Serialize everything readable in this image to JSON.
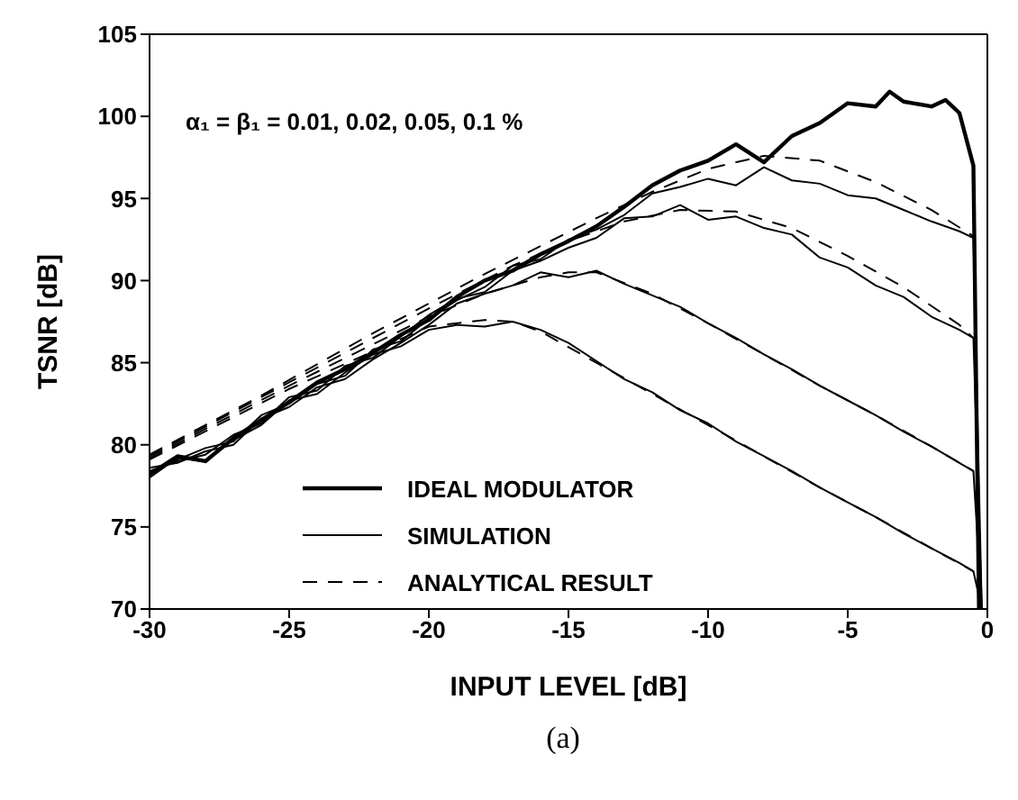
{
  "chart_data": {
    "type": "line",
    "xlabel": "INPUT LEVEL [dB]",
    "ylabel": "TSNR [dB]",
    "xlim": [
      -30,
      0
    ],
    "xticks": [
      -30,
      -25,
      -20,
      -15,
      -10,
      -5,
      0
    ],
    "ylim": [
      70,
      105
    ],
    "yticks": [
      70,
      75,
      80,
      85,
      90,
      95,
      100,
      105
    ],
    "grid": false,
    "legend": "bottom left",
    "marker": "none",
    "annotations": [
      "α₁ = β₁ = 0.01, 0.02, 0.05, 0.1 %",
      "(a)"
    ],
    "series": [
      {
        "name": "IDEAL MODULATOR",
        "color": "#000000",
        "line_style": "solid",
        "x": [
          -30,
          -29,
          -28,
          -27,
          -26,
          -25,
          -24,
          -23,
          -22,
          -21,
          -20,
          -19,
          -18,
          -17,
          -16,
          -15,
          -14,
          -13,
          -12,
          -11,
          -10,
          -9,
          -8,
          -7,
          -6,
          -5,
          -4,
          -3.5,
          -3,
          -2,
          -1.5,
          -1,
          -0.5,
          -0.3
        ],
        "values": [
          78.2,
          79.3,
          79.0,
          80.4,
          81.5,
          82.6,
          83.8,
          84.6,
          85.6,
          86.7,
          87.6,
          89.0,
          90.0,
          90.6,
          91.6,
          92.4,
          93.3,
          94.5,
          95.8,
          96.7,
          97.3,
          98.3,
          97.2,
          98.8,
          99.6,
          100.8,
          100.6,
          101.5,
          100.9,
          100.6,
          101.0,
          100.2,
          97.0,
          70.0
        ]
      },
      {
        "name": "SIMULATION",
        "color": "#000000",
        "line_style": "solid",
        "x": [
          -30,
          -29,
          -28,
          -27,
          -26,
          -25,
          -24,
          -23,
          -22,
          -21,
          -20,
          -19,
          -18,
          -17,
          -16,
          -15,
          -14,
          -13,
          -12,
          -11,
          -10,
          -9,
          -8,
          -7,
          -6,
          -5,
          -4,
          -3,
          -2,
          -1,
          -0.5,
          -0.2
        ],
        "values": [
          78.3,
          79.1,
          79.8,
          80.2,
          81.8,
          82.5,
          83.7,
          84.2,
          85.8,
          86.3,
          87.7,
          88.8,
          89.6,
          90.9,
          91.3,
          92.5,
          93.1,
          94.0,
          95.3,
          95.7,
          96.2,
          95.8,
          96.9,
          96.1,
          95.9,
          95.2,
          95.0,
          94.3,
          93.6,
          93.0,
          92.6,
          70.0
        ]
      },
      {
        "color": "#000000",
        "line_style": "solid",
        "x": [
          -30,
          -29,
          -28,
          -27,
          -26,
          -25,
          -24,
          -23,
          -22,
          -21,
          -20,
          -19,
          -18,
          -17,
          -16,
          -15,
          -14,
          -13,
          -12,
          -11,
          -10,
          -9,
          -8,
          -7,
          -6,
          -5,
          -4,
          -3,
          -2,
          -1,
          -0.5,
          -0.2
        ],
        "values": [
          78.4,
          79.0,
          79.4,
          80.6,
          81.3,
          82.9,
          83.3,
          84.8,
          85.3,
          86.6,
          87.9,
          88.9,
          89.3,
          90.6,
          91.2,
          92.0,
          92.6,
          93.8,
          93.9,
          94.6,
          93.7,
          93.9,
          93.2,
          92.8,
          91.4,
          90.8,
          89.7,
          89.0,
          87.8,
          87.0,
          86.5,
          70.0
        ]
      },
      {
        "color": "#000000",
        "line_style": "solid",
        "x": [
          -30,
          -29,
          -28,
          -27,
          -26,
          -25,
          -24,
          -23,
          -22,
          -21,
          -20,
          -19,
          -18,
          -17,
          -16,
          -15,
          -14,
          -13,
          -12,
          -11,
          -10,
          -9,
          -8,
          -7,
          -6,
          -5,
          -4,
          -3,
          -2,
          -1,
          -0.5,
          -0.2
        ],
        "values": [
          78.6,
          78.9,
          79.6,
          80.0,
          81.6,
          82.3,
          83.5,
          84.0,
          85.2,
          86.2,
          87.3,
          88.6,
          89.2,
          89.7,
          90.5,
          90.2,
          90.6,
          89.8,
          89.1,
          88.4,
          87.4,
          86.5,
          85.5,
          84.6,
          83.6,
          82.7,
          81.8,
          80.8,
          79.9,
          78.9,
          78.4,
          70.0
        ]
      },
      {
        "color": "#000000",
        "line_style": "solid",
        "x": [
          -30,
          -29,
          -28,
          -27,
          -26,
          -25,
          -24,
          -23,
          -22,
          -21,
          -20,
          -19,
          -18,
          -17,
          -16,
          -15,
          -14,
          -13,
          -12,
          -11,
          -10,
          -9,
          -8,
          -7,
          -6,
          -5,
          -4,
          -3,
          -2,
          -1,
          -0.5,
          -0.2
        ],
        "values": [
          78.0,
          79.2,
          79.0,
          80.3,
          81.2,
          82.7,
          83.1,
          84.4,
          85.5,
          86.0,
          87.0,
          87.3,
          87.2,
          87.5,
          87.0,
          86.2,
          85.1,
          84.0,
          83.2,
          82.1,
          81.3,
          80.2,
          79.3,
          78.4,
          77.4,
          76.5,
          75.6,
          74.6,
          73.7,
          72.8,
          72.3,
          70.0
        ]
      },
      {
        "name": "ANALYTICAL RESULT",
        "color": "#000000",
        "line_style": "dashed",
        "x": [
          -30,
          -28,
          -26,
          -24,
          -22,
          -20,
          -18,
          -16,
          -14,
          -12,
          -10,
          -8,
          -6,
          -4,
          -2,
          -0.5
        ],
        "values": [
          79.4,
          81.2,
          83.0,
          84.9,
          86.8,
          88.6,
          90.4,
          92.1,
          93.8,
          95.4,
          96.8,
          97.6,
          97.3,
          96.0,
          94.3,
          92.7
        ]
      },
      {
        "color": "#000000",
        "line_style": "dashed",
        "x": [
          -30,
          -25,
          -20,
          -17,
          -15,
          -13,
          -11,
          -9,
          -7,
          -5,
          -3,
          -1,
          -0.5
        ],
        "values": [
          79.3,
          83.8,
          88.3,
          90.9,
          92.4,
          93.6,
          94.3,
          94.2,
          93.2,
          91.5,
          89.6,
          87.3,
          86.5
        ]
      },
      {
        "color": "#000000",
        "line_style": "dashed",
        "x": [
          -30,
          -25,
          -20,
          -18,
          -16,
          -15,
          -14,
          -12,
          -10,
          -8,
          -6,
          -4,
          -2,
          -0.5
        ],
        "values": [
          79.2,
          83.6,
          87.8,
          89.2,
          90.2,
          90.5,
          90.5,
          89.2,
          87.4,
          85.5,
          83.6,
          81.8,
          79.9,
          78.4
        ]
      },
      {
        "color": "#000000",
        "line_style": "dashed",
        "x": [
          -30,
          -25,
          -20,
          -18,
          -17,
          -16,
          -14,
          -12,
          -10,
          -8,
          -6,
          -4,
          -2,
          -0.5
        ],
        "values": [
          79.1,
          83.4,
          87.2,
          87.6,
          87.5,
          86.9,
          85.0,
          83.1,
          81.2,
          79.3,
          77.4,
          75.6,
          73.7,
          72.3
        ]
      }
    ]
  }
}
